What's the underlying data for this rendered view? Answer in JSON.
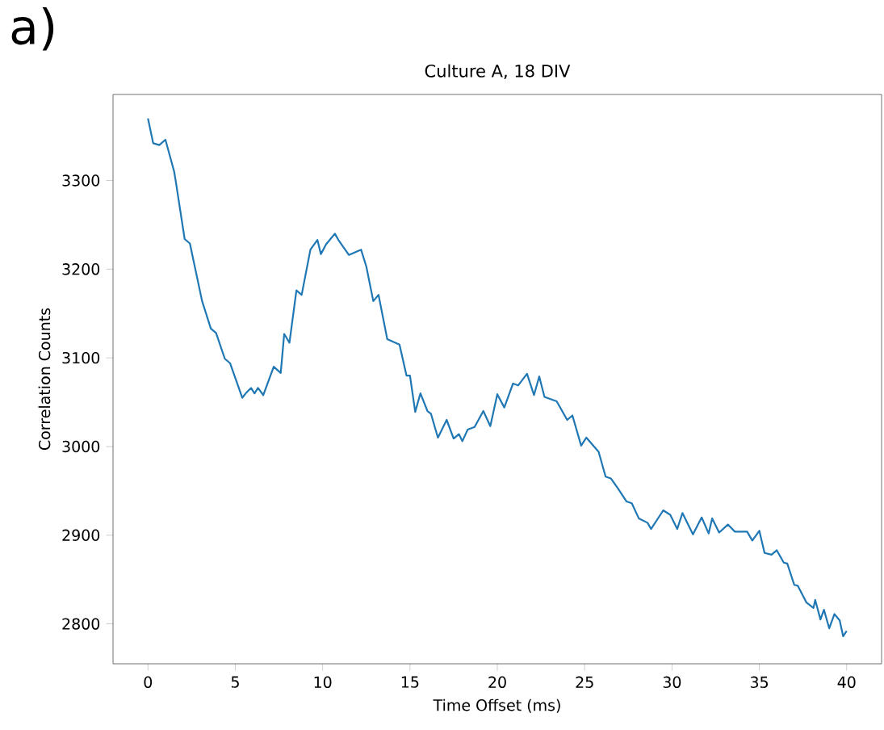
{
  "chart_data": {
    "type": "line",
    "title": "Culture A, 18 DIV",
    "xlabel": "Time Offset (ms)",
    "ylabel": "Correlation Counts",
    "annotations": [
      "a)"
    ],
    "x": [
      0,
      0.3,
      0.65,
      1.0,
      1.5,
      1.6,
      2.1,
      2.4,
      3.1,
      3.6,
      3.9,
      4.4,
      4.7,
      5.4,
      5.6,
      5.9,
      6.1,
      6.3,
      6.6,
      7.2,
      7.6,
      7.8,
      8.1,
      8.5,
      8.8,
      9.3,
      9.7,
      9.9,
      10.2,
      10.7,
      10.9,
      11.5,
      12.2,
      12.5,
      12.9,
      13.2,
      13.7,
      14.4,
      14.8,
      15.0,
      15.3,
      15.6,
      16.0,
      16.2,
      16.6,
      17.1,
      17.5,
      17.8,
      18.0,
      18.3,
      18.7,
      19.2,
      19.6,
      20.0,
      20.4,
      20.9,
      21.2,
      21.7,
      22.1,
      22.4,
      22.7,
      23.4,
      24.0,
      24.3,
      24.8,
      25.1,
      25.8,
      26.2,
      26.5,
      26.9,
      27.4,
      27.7,
      28.1,
      28.6,
      28.8,
      29.5,
      29.9,
      30.3,
      30.6,
      31.2,
      31.7,
      32.1,
      32.3,
      32.7,
      33.2,
      33.6,
      34.3,
      34.6,
      35.0,
      35.3,
      35.7,
      36.0,
      36.4,
      36.6,
      37.0,
      37.2,
      37.7,
      38.1,
      38.2,
      38.5,
      38.7,
      39.0,
      39.3,
      39.6,
      39.8,
      40.0
    ],
    "series": [
      {
        "color": "#1f77b4",
        "values": [
          3370,
          3342,
          3340,
          3346,
          3310,
          3298,
          3234,
          3229,
          3164,
          3133,
          3128,
          3099,
          3094,
          3055,
          3060,
          3066,
          3060,
          3066,
          3058,
          3090,
          3083,
          3127,
          3117,
          3176,
          3171,
          3222,
          3233,
          3217,
          3228,
          3240,
          3233,
          3216,
          3222,
          3203,
          3164,
          3171,
          3121,
          3115,
          3080,
          3080,
          3039,
          3060,
          3040,
          3037,
          3010,
          3030,
          3009,
          3014,
          3006,
          3019,
          3022,
          3040,
          3023,
          3059,
          3044,
          3071,
          3069,
          3082,
          3058,
          3079,
          3056,
          3051,
          3030,
          3035,
          3001,
          3010,
          2994,
          2966,
          2964,
          2953,
          2938,
          2936,
          2919,
          2914,
          2907,
          2928,
          2923,
          2907,
          2925,
          2901,
          2920,
          2902,
          2919,
          2903,
          2912,
          2904,
          2904,
          2894,
          2905,
          2880,
          2878,
          2883,
          2869,
          2868,
          2844,
          2843,
          2824,
          2818,
          2827,
          2805,
          2816,
          2795,
          2811,
          2804,
          2786,
          2792
        ]
      }
    ],
    "xlim": [
      -2,
      42
    ],
    "ylim": [
      2755,
      3397
    ],
    "xticks": [
      0,
      5,
      10,
      15,
      20,
      25,
      30,
      35,
      40
    ],
    "yticks": [
      2800,
      2900,
      3000,
      3100,
      3200,
      3300
    ],
    "grid": false,
    "marker": "none",
    "line_style": "solid"
  }
}
